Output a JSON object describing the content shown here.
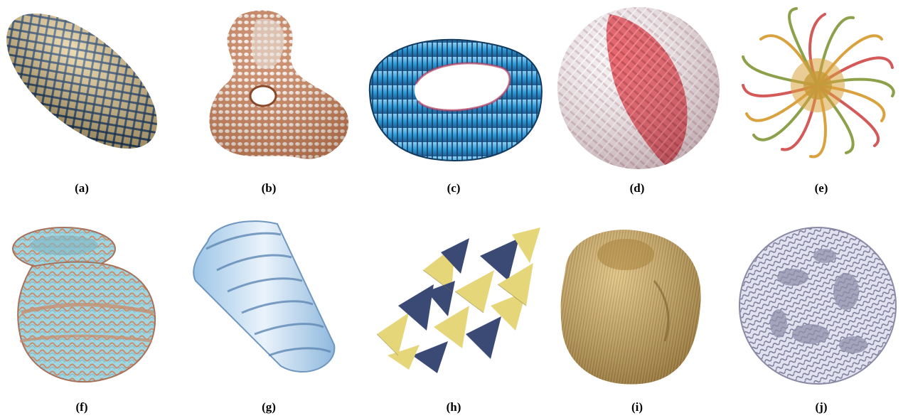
{
  "figure": {
    "panels": [
      {
        "id": "a",
        "label": "(a)",
        "subject": "woven ellipsoid",
        "colors": [
          "#e7c888",
          "#2b4a6e"
        ]
      },
      {
        "id": "b",
        "label": "(b)",
        "subject": "genus-1 knotted surface with scaled texture",
        "colors": [
          "#c47b54",
          "#f2e6dc"
        ]
      },
      {
        "id": "c",
        "label": "(c)",
        "subject": "twisted torus with ribbed strands",
        "colors": [
          "#2e9ad6",
          "#b23a5c"
        ]
      },
      {
        "id": "d",
        "label": "(d)",
        "subject": "woven sphere with red band",
        "colors": [
          "#e8e0e2",
          "#e04a54"
        ]
      },
      {
        "id": "e",
        "label": "(e)",
        "subject": "curling tendril sphere",
        "colors": [
          "#d9a23e",
          "#8da04a",
          "#d45a5a"
        ]
      },
      {
        "id": "f",
        "label": "(f)",
        "subject": "braided vase shape",
        "colors": [
          "#9fd6e2",
          "#c98e6e"
        ]
      },
      {
        "id": "g",
        "label": "(g)",
        "subject": "ribbed cylinder",
        "colors": [
          "#a9cde8",
          "#e7f0f8"
        ]
      },
      {
        "id": "h",
        "label": "(h)",
        "subject": "fan-like ribbon clusters",
        "colors": [
          "#e6d67a",
          "#3b4a74"
        ]
      },
      {
        "id": "i",
        "label": "(i)",
        "subject": "fibrous golden blob",
        "colors": [
          "#c9a25a",
          "#8a6a30"
        ]
      },
      {
        "id": "j",
        "label": "(j)",
        "subject": "woven lattice sphere",
        "colors": [
          "#d8d8ea",
          "#6a6a86"
        ]
      }
    ]
  }
}
